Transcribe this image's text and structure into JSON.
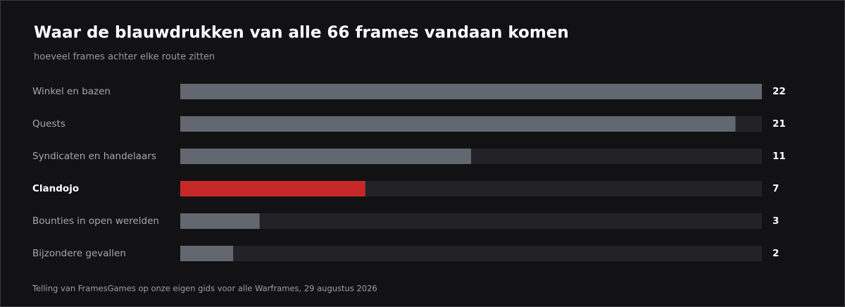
{
  "chart_data": {
    "type": "bar",
    "orientation": "horizontal",
    "title": "Waar de blauwdrukken van alle 66 frames vandaan komen",
    "subtitle": "hoeveel frames achter elke route zitten",
    "categories": [
      "Winkel en bazen",
      "Quests",
      "Syndicaten en handelaars",
      "Clandojo",
      "Bounties in open werelden",
      "Bijzondere gevallen"
    ],
    "values": [
      22,
      21,
      11,
      7,
      3,
      2
    ],
    "colors": [
      "#626770",
      "#626770",
      "#626770",
      "#c62828",
      "#626770",
      "#626770"
    ],
    "xlim": [
      0,
      22
    ],
    "source": "Telling van FramesGames op onze eigen gids voor alle Warframes, 29 augustus 2026"
  }
}
